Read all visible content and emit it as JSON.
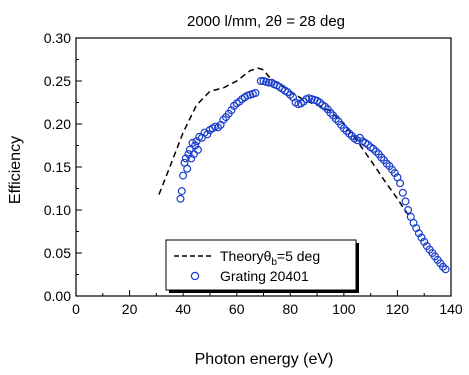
{
  "chart_data": {
    "type": "line",
    "title": "2000 l/mm, 2θ = 28 deg",
    "xlabel": "Photon energy (eV)",
    "ylabel": "Efficiency",
    "xlim": [
      0,
      140
    ],
    "ylim": [
      0,
      0.3
    ],
    "xticks": [
      "0",
      "20",
      "40",
      "60",
      "80",
      "100",
      "120",
      "140"
    ],
    "yticks": [
      "0.00",
      "0.05",
      "0.10",
      "0.15",
      "0.20",
      "0.25",
      "0.30"
    ],
    "grid": false,
    "legend_position": "bottom-center",
    "series": [
      {
        "name": "Theory",
        "legend_label": {
          "main": "Theoryθ",
          "sub": "b",
          "rest": "=5 deg"
        },
        "style": "dashed",
        "color": "#000000",
        "x": [
          31,
          35,
          40,
          45,
          50,
          55,
          60,
          65,
          68,
          70,
          72,
          75,
          80,
          85,
          90,
          95,
          100,
          105,
          110,
          115,
          120,
          125
        ],
        "y": [
          0.118,
          0.15,
          0.19,
          0.222,
          0.238,
          0.242,
          0.25,
          0.262,
          0.265,
          0.263,
          0.255,
          0.248,
          0.238,
          0.228,
          0.222,
          0.215,
          0.2,
          0.18,
          0.158,
          0.135,
          0.113,
          0.09
        ]
      },
      {
        "name": "Grating 20401",
        "style": "markers",
        "color": "#1a3ecc",
        "x": [
          39,
          39.5,
          40,
          40.5,
          41,
          41.5,
          42,
          42.5,
          43,
          43.5,
          44,
          44.5,
          45,
          45.5,
          46,
          47,
          48,
          49,
          50,
          51,
          52,
          53,
          54,
          55,
          56,
          57,
          58,
          59,
          60,
          61,
          62,
          63,
          64,
          65,
          66,
          67,
          69,
          70,
          71,
          72,
          73,
          74,
          75,
          76,
          77,
          78,
          79,
          80,
          81,
          82,
          83,
          84,
          85,
          86,
          87,
          88,
          89,
          90,
          91,
          92,
          93,
          94,
          95,
          96,
          97,
          98,
          99,
          100,
          101,
          102,
          103,
          104,
          105,
          106,
          107,
          108,
          109,
          110,
          111,
          112,
          113,
          114,
          115,
          116,
          117,
          118,
          119,
          120,
          121,
          122,
          123,
          124,
          125,
          126,
          127,
          128,
          129,
          130,
          131,
          132,
          133,
          134,
          135,
          136,
          137,
          138
        ],
        "y": [
          0.113,
          0.122,
          0.14,
          0.155,
          0.16,
          0.148,
          0.165,
          0.17,
          0.16,
          0.178,
          0.165,
          0.175,
          0.18,
          0.17,
          0.185,
          0.184,
          0.19,
          0.188,
          0.193,
          0.195,
          0.197,
          0.196,
          0.199,
          0.205,
          0.208,
          0.212,
          0.216,
          0.221,
          0.224,
          0.226,
          0.229,
          0.231,
          0.233,
          0.234,
          0.235,
          0.236,
          0.25,
          0.25,
          0.249,
          0.248,
          0.248,
          0.246,
          0.245,
          0.243,
          0.241,
          0.239,
          0.237,
          0.234,
          0.231,
          0.225,
          0.223,
          0.224,
          0.226,
          0.229,
          0.23,
          0.229,
          0.228,
          0.227,
          0.225,
          0.222,
          0.22,
          0.217,
          0.213,
          0.21,
          0.206,
          0.203,
          0.199,
          0.195,
          0.192,
          0.189,
          0.186,
          0.183,
          0.181,
          0.184,
          0.18,
          0.178,
          0.176,
          0.173,
          0.171,
          0.168,
          0.165,
          0.161,
          0.158,
          0.154,
          0.151,
          0.147,
          0.143,
          0.138,
          0.131,
          0.12,
          0.11,
          0.1,
          0.092,
          0.085,
          0.079,
          0.073,
          0.068,
          0.063,
          0.058,
          0.054,
          0.05,
          0.046,
          0.042,
          0.038,
          0.034,
          0.031
        ]
      }
    ]
  }
}
